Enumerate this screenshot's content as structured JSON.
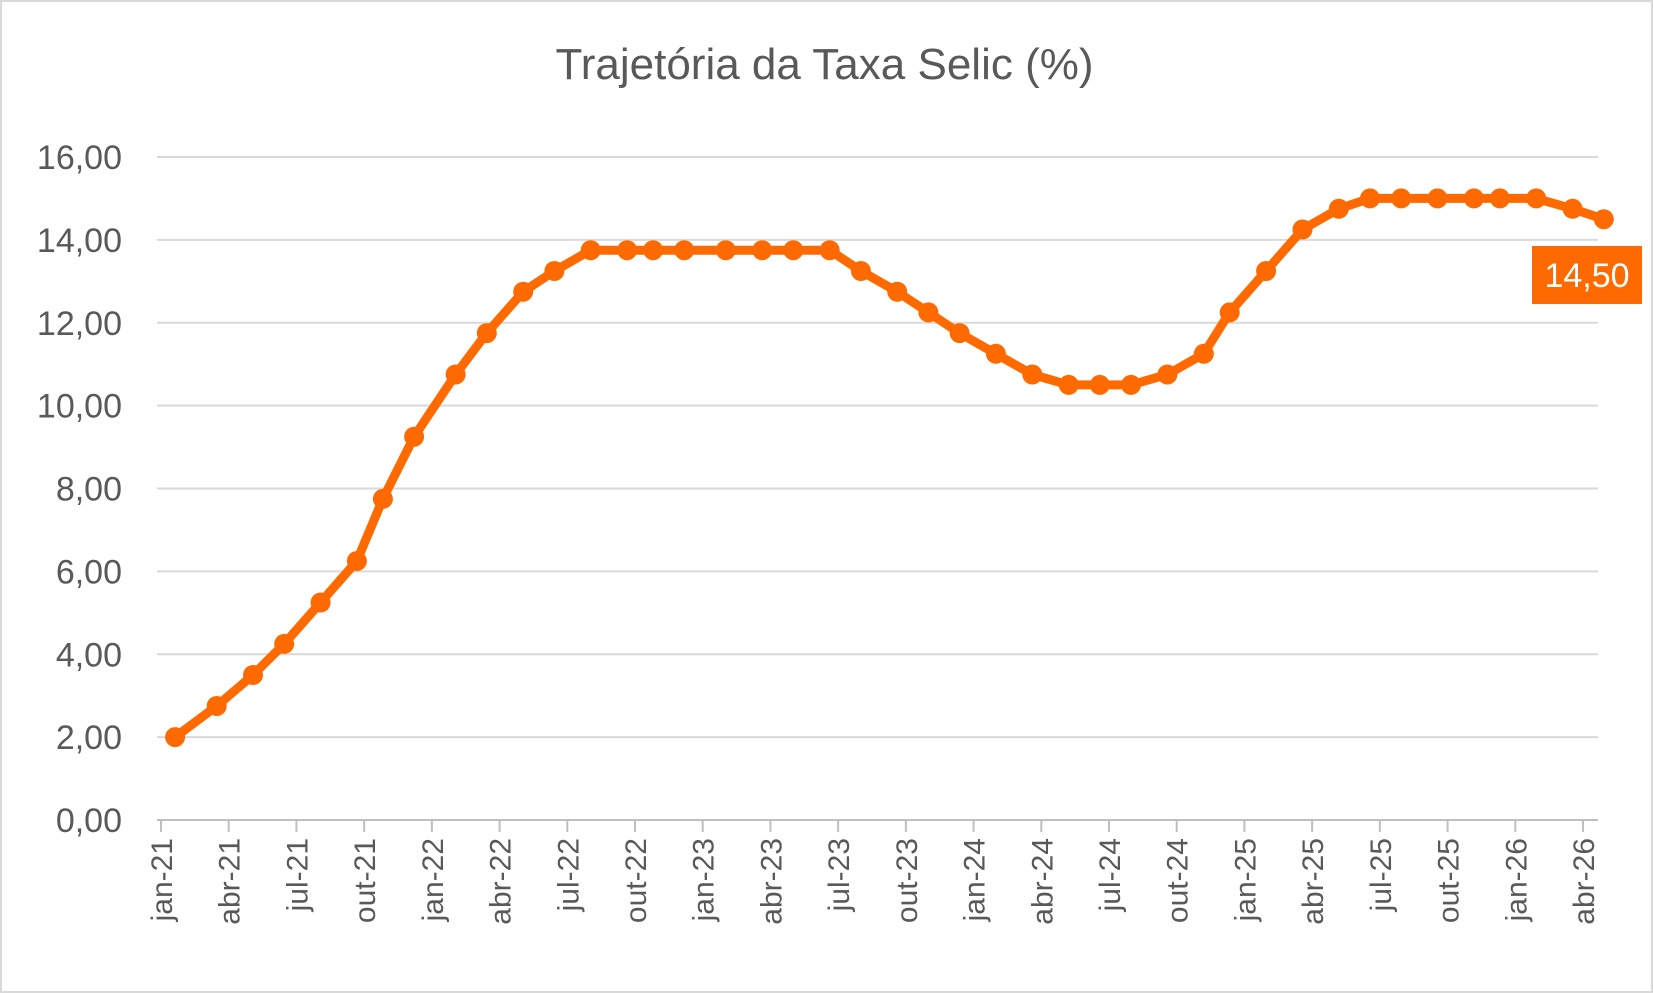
{
  "chart_data": {
    "type": "line",
    "title": "Trajetória da Taxa Selic (%)",
    "xlabel": "",
    "ylabel": "",
    "ylim": [
      0,
      16
    ],
    "y_ticks": [
      "0,00",
      "2,00",
      "4,00",
      "6,00",
      "8,00",
      "10,00",
      "12,00",
      "14,00",
      "16,00"
    ],
    "x_range": [
      "2021-01-01",
      "2026-04-01"
    ],
    "x_tick_labels": [
      "jan-21",
      "abr-21",
      "jul-21",
      "out-21",
      "jan-22",
      "abr-22",
      "jul-22",
      "out-22",
      "jan-23",
      "abr-23",
      "jul-23",
      "out-23",
      "jan-24",
      "abr-24",
      "jul-24",
      "out-24",
      "jan-25",
      "abr-25",
      "jul-25",
      "out-25",
      "jan-26",
      "abr-26"
    ],
    "grid": true,
    "legend": "none",
    "colors": {
      "line": "#ff6a00",
      "grid": "#d9d9d9",
      "axis": "#bfbfbf",
      "text": "#595959",
      "callout_bg": "#ff6a00",
      "callout_text": "#ffffff"
    },
    "series": [
      {
        "points": [
          [
            "2021-01-20",
            2.0
          ],
          [
            "2021-03-17",
            2.75
          ],
          [
            "2021-05-05",
            3.5
          ],
          [
            "2021-06-16",
            4.25
          ],
          [
            "2021-08-04",
            5.25
          ],
          [
            "2021-09-22",
            6.25
          ],
          [
            "2021-10-27",
            7.75
          ],
          [
            "2021-12-08",
            9.25
          ],
          [
            "2022-02-02",
            10.75
          ],
          [
            "2022-03-16",
            11.75
          ],
          [
            "2022-05-04",
            12.75
          ],
          [
            "2022-06-15",
            13.25
          ],
          [
            "2022-08-03",
            13.75
          ],
          [
            "2022-09-21",
            13.75
          ],
          [
            "2022-10-26",
            13.75
          ],
          [
            "2022-12-07",
            13.75
          ],
          [
            "2023-02-01",
            13.75
          ],
          [
            "2023-03-22",
            13.75
          ],
          [
            "2023-05-03",
            13.75
          ],
          [
            "2023-06-21",
            13.75
          ],
          [
            "2023-08-02",
            13.25
          ],
          [
            "2023-09-20",
            12.75
          ],
          [
            "2023-11-01",
            12.25
          ],
          [
            "2023-12-13",
            11.75
          ],
          [
            "2024-01-31",
            11.25
          ],
          [
            "2024-03-20",
            10.75
          ],
          [
            "2024-05-08",
            10.5
          ],
          [
            "2024-06-19",
            10.5
          ],
          [
            "2024-07-31",
            10.5
          ],
          [
            "2024-09-18",
            10.75
          ],
          [
            "2024-11-06",
            11.25
          ],
          [
            "2024-12-11",
            12.25
          ],
          [
            "2025-01-29",
            13.25
          ],
          [
            "2025-03-19",
            14.25
          ],
          [
            "2025-05-07",
            14.75
          ],
          [
            "2025-06-18",
            15.0
          ],
          [
            "2025-07-30",
            15.0
          ],
          [
            "2025-09-17",
            15.0
          ],
          [
            "2025-11-05",
            15.0
          ],
          [
            "2025-12-10",
            15.0
          ],
          [
            "2026-01-28",
            15.0
          ],
          [
            "2026-03-18",
            14.75
          ],
          [
            "2026-04-29",
            14.5
          ]
        ]
      }
    ],
    "annotations": [
      {
        "text": "14,50"
      }
    ]
  }
}
